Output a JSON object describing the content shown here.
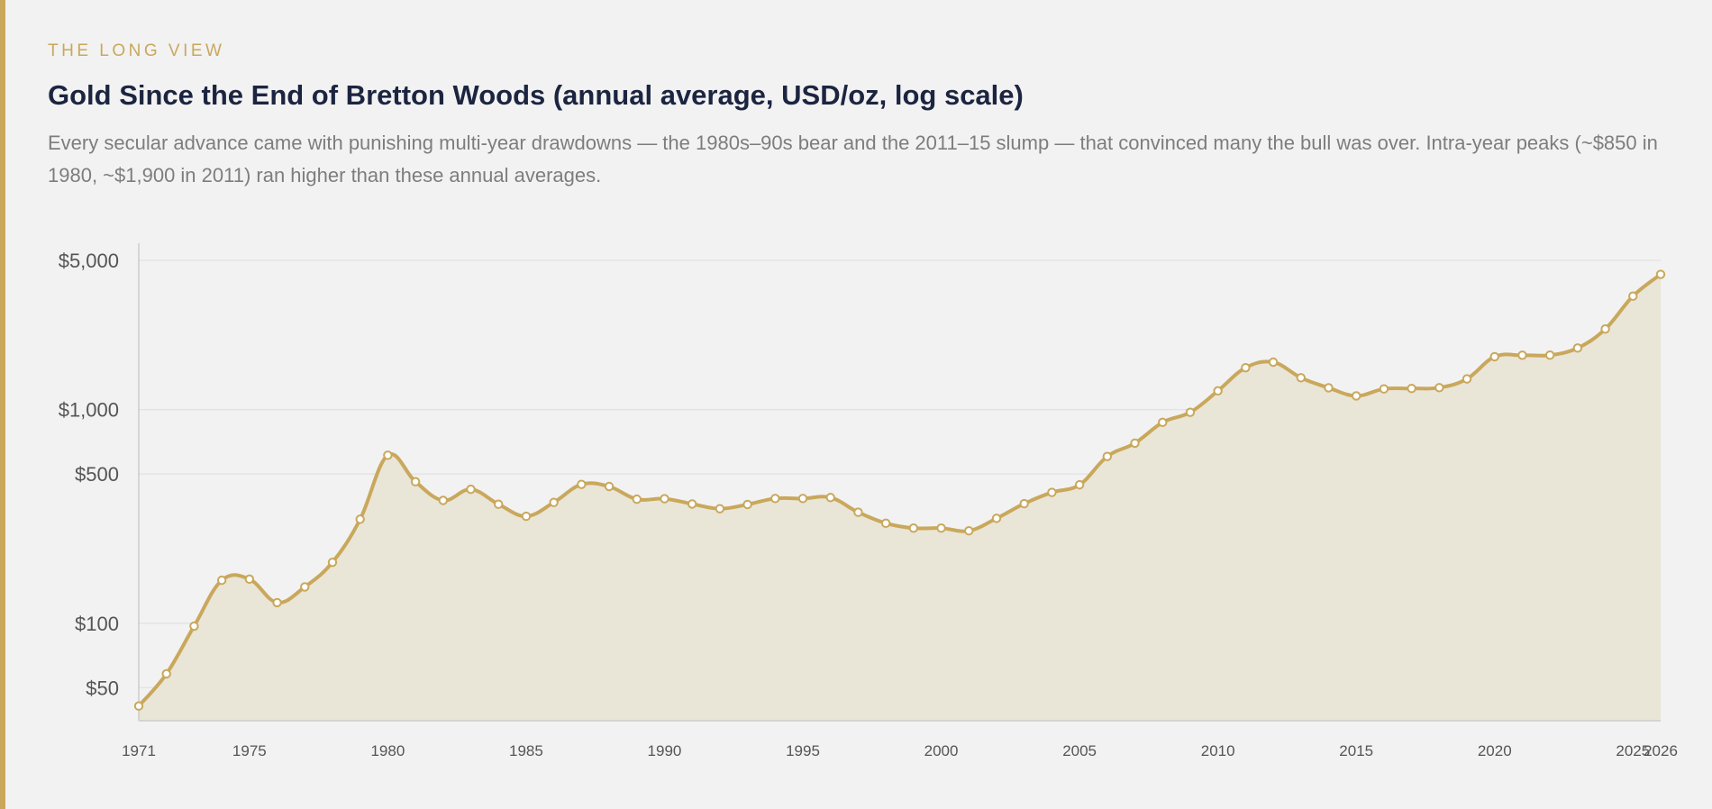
{
  "header": {
    "kicker": "THE LONG VIEW",
    "title": "Gold Since the End of Bretton Woods (annual average, USD/oz, log scale)",
    "subtitle": "Every secular advance came with punishing multi-year drawdowns — the 1980s–90s bear and the 2011–15 slump — that convinced many the bull was over. Intra-year peaks (~$850 in 1980, ~$1,900 in 2011) ran higher than these annual averages."
  },
  "colors": {
    "accent": "#c9a85c",
    "area_fill": "#e9e5d7",
    "grid": "#dddddd",
    "axis": "#cccccc",
    "title": "#1c2540"
  },
  "chart_data": {
    "type": "area",
    "scale": "log",
    "grid": true,
    "ylim": [
      35,
      5000
    ],
    "y_ticks": [
      {
        "value": 50,
        "label": "$50"
      },
      {
        "value": 100,
        "label": "$100"
      },
      {
        "value": 500,
        "label": "$500"
      },
      {
        "value": 1000,
        "label": "$1,000"
      },
      {
        "value": 5000,
        "label": "$5,000"
      }
    ],
    "x_ticks": [
      1971,
      1975,
      1980,
      1985,
      1990,
      1995,
      2000,
      2005,
      2010,
      2015,
      2020,
      2025,
      2026
    ],
    "x": [
      1971,
      1972,
      1973,
      1974,
      1975,
      1976,
      1977,
      1978,
      1979,
      1980,
      1981,
      1982,
      1983,
      1984,
      1985,
      1986,
      1987,
      1988,
      1989,
      1990,
      1991,
      1992,
      1993,
      1994,
      1995,
      1996,
      1997,
      1998,
      1999,
      2000,
      2001,
      2002,
      2003,
      2004,
      2005,
      2006,
      2007,
      2008,
      2009,
      2010,
      2011,
      2012,
      2013,
      2014,
      2015,
      2016,
      2017,
      2018,
      2019,
      2020,
      2021,
      2022,
      2023,
      2024,
      2025,
      2026
    ],
    "series": [
      {
        "values": [
          41,
          58,
          97,
          159,
          161,
          125,
          148,
          193,
          307,
          612,
          460,
          376,
          424,
          361,
          317,
          368,
          447,
          437,
          381,
          383,
          362,
          344,
          360,
          384,
          384,
          388,
          331,
          294,
          279,
          279,
          271,
          310,
          363,
          410,
          445,
          604,
          697,
          872,
          972,
          1225,
          1572,
          1669,
          1411,
          1266,
          1160,
          1251,
          1257,
          1268,
          1393,
          1770,
          1799,
          1800,
          1943,
          2386,
          3400,
          4300
        ]
      }
    ]
  }
}
